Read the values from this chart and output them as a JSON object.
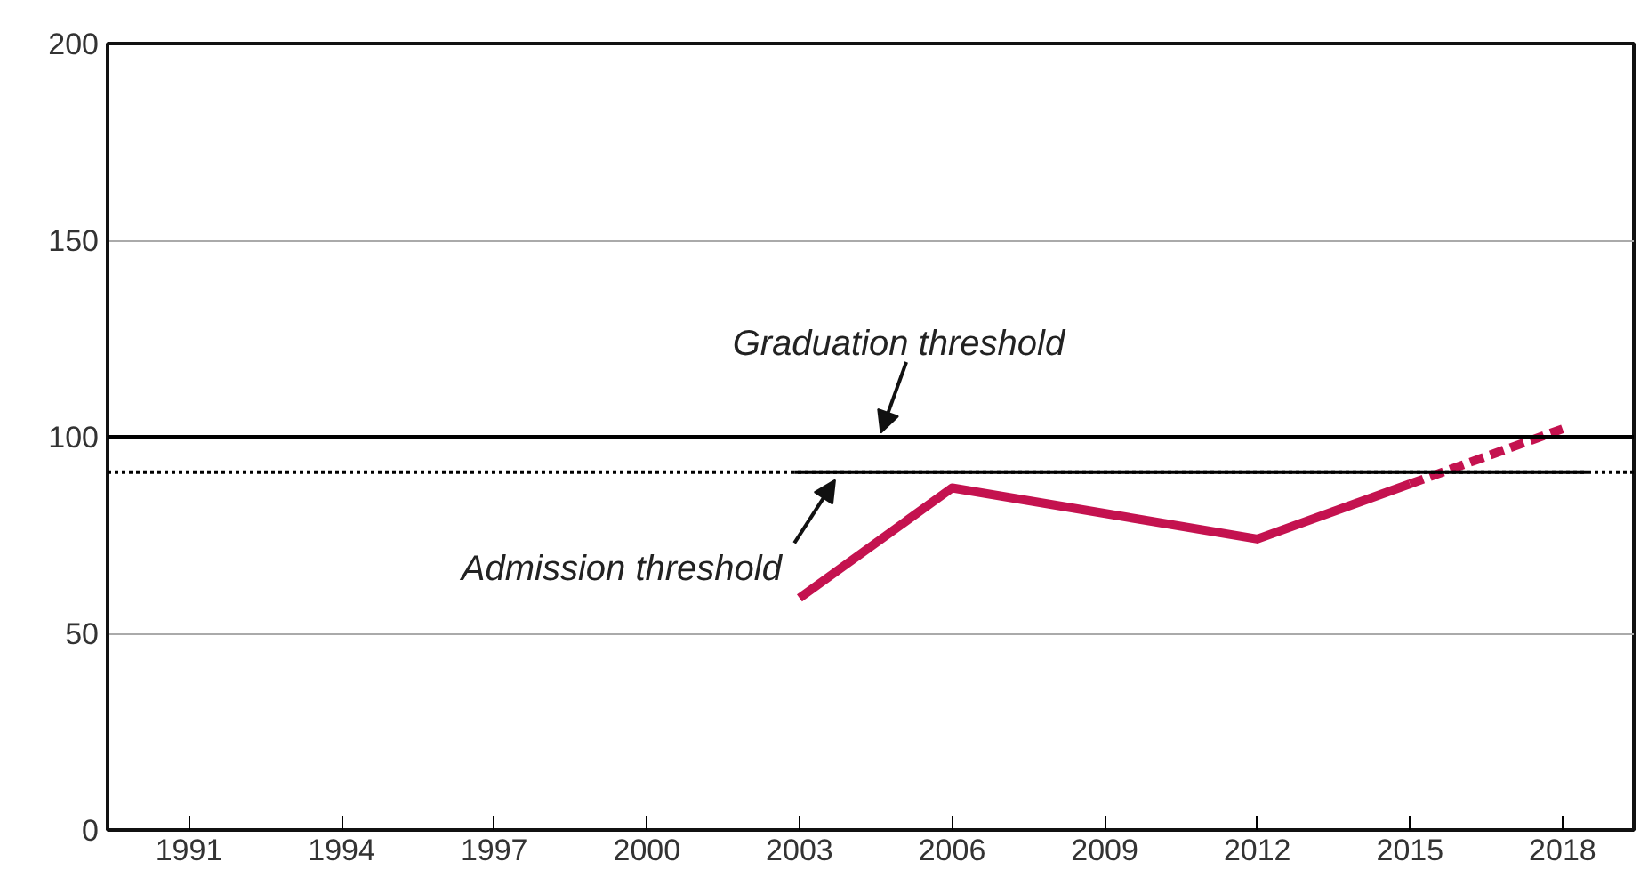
{
  "chart_data": {
    "type": "line",
    "xlim": [
      1989.4,
      2019.4
    ],
    "ylim": [
      0,
      200
    ],
    "xticks": [
      1991,
      1994,
      1997,
      2000,
      2003,
      2006,
      2009,
      2012,
      2015,
      2018
    ],
    "yticks": [
      0,
      50,
      100,
      150,
      200
    ],
    "grid": "y",
    "marker": "none",
    "series": [
      {
        "color": "#c4124f",
        "x": [
          2003,
          2006,
          2012,
          2015
        ],
        "values": [
          59,
          87,
          74,
          88
        ],
        "line_style": "solid"
      },
      {
        "color": "#c4124f",
        "x": [
          2015,
          2018
        ],
        "values": [
          88,
          102
        ],
        "line_style": "dashed"
      },
      {
        "color": "#000000",
        "x": [
          2002.9,
          2018.5
        ],
        "values": [
          91,
          91
        ],
        "line_style": "solid"
      }
    ],
    "ref_lines": [
      {
        "axis": "y",
        "value": 100,
        "color": "#000000",
        "line_style": "solid"
      },
      {
        "axis": "y",
        "value": 91,
        "color": "#000000",
        "line_style": "dotted"
      }
    ],
    "annotations": [
      {
        "text": "Graduation threshold",
        "x": 2004.6,
        "y": 101
      },
      {
        "text": "Admission threshold",
        "x": 2003.7,
        "y": 89
      }
    ]
  }
}
